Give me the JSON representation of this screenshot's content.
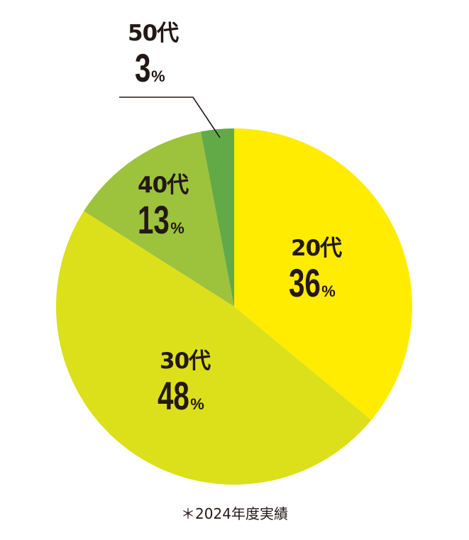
{
  "chart_data": {
    "type": "pie",
    "start": "12 o'clock, clockwise",
    "slices": [
      {
        "label": "20代",
        "value": 36,
        "unit": "%",
        "color": "#FFEC00"
      },
      {
        "label": "30代",
        "value": 48,
        "unit": "%",
        "color": "#DCE01A"
      },
      {
        "label": "40代",
        "value": 13,
        "unit": "%",
        "color": "#9DC23C"
      },
      {
        "label": "50代",
        "value": 3,
        "unit": "%",
        "color": "#62AA47"
      }
    ],
    "annotation": "＊2024年度実績"
  }
}
